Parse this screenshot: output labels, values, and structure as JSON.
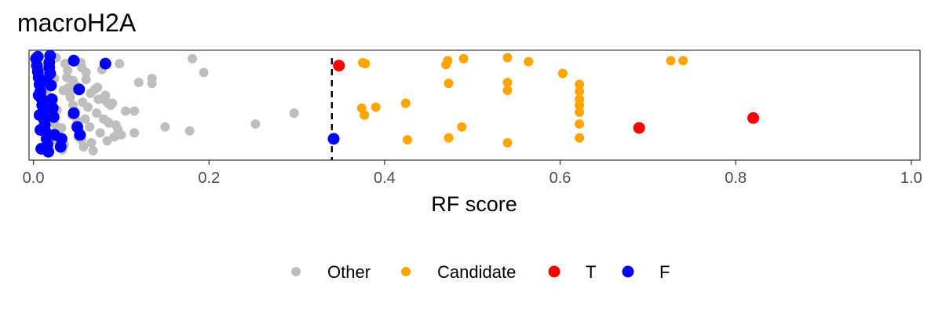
{
  "chart_data": {
    "type": "scatter",
    "title": "macroH2A",
    "xlabel": "RF score",
    "ylabel": "",
    "xlim": [
      0,
      1
    ],
    "xticks": [
      "0.0",
      "0.2",
      "0.4",
      "0.6",
      "0.8",
      "1.0"
    ],
    "xtick_values": [
      0,
      0.2,
      0.4,
      0.6,
      0.8,
      1.0
    ],
    "threshold": 0.34,
    "jitter_range": [
      0,
      1
    ],
    "legend_position": "bottom",
    "grid": false,
    "series": [
      {
        "name": "Other",
        "color": "#bebebe",
        "points": [
          [
            0.003,
            0.95
          ],
          [
            0.006,
            0.88
          ],
          [
            0.01,
            0.8
          ],
          [
            0.012,
            0.72
          ],
          [
            0.015,
            0.64
          ],
          [
            0.018,
            0.55
          ],
          [
            0.02,
            0.47
          ],
          [
            0.022,
            0.38
          ],
          [
            0.025,
            0.3
          ],
          [
            0.028,
            0.2
          ],
          [
            0.03,
            0.12
          ],
          [
            0.033,
            0.05
          ],
          [
            0.036,
            0.92
          ],
          [
            0.038,
            0.78
          ],
          [
            0.04,
            0.68
          ],
          [
            0.042,
            0.58
          ],
          [
            0.045,
            0.5
          ],
          [
            0.047,
            0.42
          ],
          [
            0.05,
            0.34
          ],
          [
            0.052,
            0.24
          ],
          [
            0.055,
            0.15
          ],
          [
            0.057,
            0.08
          ],
          [
            0.008,
            0.6
          ],
          [
            0.014,
            0.33
          ],
          [
            0.019,
            0.9
          ],
          [
            0.024,
            0.77
          ],
          [
            0.027,
            0.45
          ],
          [
            0.032,
            0.27
          ],
          [
            0.035,
            0.1
          ],
          [
            0.039,
            0.85
          ],
          [
            0.041,
            0.62
          ],
          [
            0.044,
            0.4
          ],
          [
            0.048,
            0.7
          ],
          [
            0.051,
            0.18
          ],
          [
            0.054,
            0.93
          ],
          [
            0.056,
            0.53
          ],
          [
            0.059,
            0.36
          ],
          [
            0.06,
            0.76
          ],
          [
            0.062,
            0.48
          ],
          [
            0.064,
            0.28
          ],
          [
            0.066,
            0.12
          ],
          [
            0.068,
            0.04
          ],
          [
            0.07,
            0.66
          ],
          [
            0.072,
            0.42
          ],
          [
            0.074,
            0.56
          ],
          [
            0.076,
            0.22
          ],
          [
            0.078,
            0.86
          ],
          [
            0.08,
            0.36
          ],
          [
            0.082,
            0.6
          ],
          [
            0.084,
            0.14
          ],
          [
            0.086,
            0.32
          ],
          [
            0.088,
            0.5
          ],
          [
            0.09,
            0.52
          ],
          [
            0.092,
            0.18
          ],
          [
            0.094,
            0.3
          ],
          [
            0.096,
            0.26
          ],
          [
            0.1,
            0.2
          ],
          [
            0.105,
            0.44
          ],
          [
            0.115,
            0.22
          ],
          [
            0.15,
            0.28
          ],
          [
            0.178,
            0.24
          ],
          [
            0.181,
            0.97
          ],
          [
            0.135,
            0.77
          ],
          [
            0.135,
            0.72
          ],
          [
            0.194,
            0.83
          ],
          [
            0.098,
            0.92
          ],
          [
            0.065,
            0.62
          ],
          [
            0.073,
            0.68
          ],
          [
            0.06,
            0.83
          ],
          [
            0.045,
            0.75
          ],
          [
            0.055,
            0.88
          ],
          [
            0.085,
            0.33
          ],
          [
            0.115,
            0.44
          ],
          [
            0.253,
            0.31
          ],
          [
            0.297,
            0.42
          ],
          [
            0.12,
            0.73
          ],
          [
            0.085,
            0.52
          ],
          [
            0.082,
            0.55
          ],
          [
            0.022,
            0.15
          ],
          [
            0.026,
            0.98
          ],
          [
            0.034,
            0.65
          ]
        ]
      },
      {
        "name": "Candidate",
        "color": "#ffa500",
        "points": [
          [
            0.375,
            0.93
          ],
          [
            0.378,
            0.92
          ],
          [
            0.47,
            0.91
          ],
          [
            0.472,
            0.95
          ],
          [
            0.49,
            0.97
          ],
          [
            0.54,
            0.98
          ],
          [
            0.564,
            0.94
          ],
          [
            0.726,
            0.95
          ],
          [
            0.74,
            0.95
          ],
          [
            0.603,
            0.82
          ],
          [
            0.473,
            0.72
          ],
          [
            0.54,
            0.73
          ],
          [
            0.54,
            0.65
          ],
          [
            0.622,
            0.71
          ],
          [
            0.622,
            0.64
          ],
          [
            0.622,
            0.56
          ],
          [
            0.622,
            0.5
          ],
          [
            0.622,
            0.43
          ],
          [
            0.424,
            0.52
          ],
          [
            0.39,
            0.48
          ],
          [
            0.374,
            0.47
          ],
          [
            0.377,
            0.4
          ],
          [
            0.488,
            0.28
          ],
          [
            0.622,
            0.31
          ],
          [
            0.426,
            0.15
          ],
          [
            0.473,
            0.17
          ],
          [
            0.54,
            0.12
          ],
          [
            0.622,
            0.17
          ]
        ]
      },
      {
        "name": "T",
        "color": "#ff0000",
        "points": [
          [
            0.348,
            0.9
          ],
          [
            0.69,
            0.27
          ],
          [
            0.82,
            0.37
          ]
        ]
      },
      {
        "name": "F",
        "color": "#0000ff",
        "points": [
          [
            0.003,
            0.97
          ],
          [
            0.004,
            0.9
          ],
          [
            0.005,
            0.84
          ],
          [
            0.006,
            0.78
          ],
          [
            0.007,
            0.71
          ],
          [
            0.008,
            0.64
          ],
          [
            0.009,
            0.57
          ],
          [
            0.01,
            0.5
          ],
          [
            0.011,
            0.43
          ],
          [
            0.012,
            0.36
          ],
          [
            0.013,
            0.3
          ],
          [
            0.014,
            0.23
          ],
          [
            0.015,
            0.16
          ],
          [
            0.016,
            0.1
          ],
          [
            0.017,
            0.03
          ],
          [
            0.005,
            0.99
          ],
          [
            0.006,
            0.6
          ],
          [
            0.007,
            0.4
          ],
          [
            0.008,
            0.25
          ],
          [
            0.009,
            0.06
          ],
          [
            0.018,
            0.93
          ],
          [
            0.019,
            0.82
          ],
          [
            0.02,
            0.7
          ],
          [
            0.021,
            0.56
          ],
          [
            0.022,
            0.47
          ],
          [
            0.023,
            0.38
          ],
          [
            0.024,
            0.2
          ],
          [
            0.019,
            1.0
          ],
          [
            0.046,
            0.95
          ],
          [
            0.082,
            0.92
          ],
          [
            0.052,
            0.66
          ],
          [
            0.046,
            0.42
          ],
          [
            0.05,
            0.28
          ],
          [
            0.053,
            0.2
          ],
          [
            0.032,
            0.16
          ],
          [
            0.031,
            0.08
          ],
          [
            0.342,
            0.16
          ],
          [
            0.015,
            0.74
          ],
          [
            0.018,
            0.88
          ]
        ]
      }
    ]
  }
}
